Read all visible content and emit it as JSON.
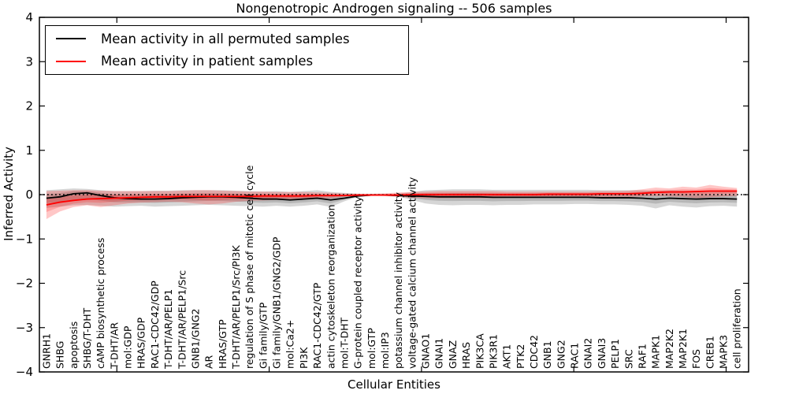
{
  "figure": {
    "title": "Nongenotropic Androgen signaling -- 506 samples",
    "xlabel": "Cellular Entities",
    "ylabel": "Inferred Activity"
  },
  "legend": {
    "position": "upper left",
    "items": [
      {
        "label": "Mean activity in all permuted samples",
        "color": "#000000"
      },
      {
        "label": "Mean activity in patient samples",
        "color": "#ff0000"
      }
    ]
  },
  "chart_data": {
    "type": "line",
    "title": "Nongenotropic Androgen signaling -- 506 samples",
    "xlabel": "Cellular Entities",
    "ylabel": "Inferred Activity",
    "ylim": [
      -4,
      4
    ],
    "yticks": [
      4,
      3,
      2,
      1,
      0,
      -1,
      -2,
      -3,
      -4
    ],
    "xlim": [
      -0.52,
      51.86
    ],
    "x_major_tick_positions": [
      5.2,
      16.45,
      27.7,
      38.95,
      50.2
    ],
    "grid": false,
    "background_color": "#ffffff",
    "axis_color": "#000000",
    "zero_line": {
      "y": 0,
      "style": "dotted",
      "color": "#000000"
    },
    "categories": [
      "GNRH1",
      "SHBG",
      "apoptosis",
      "SHBG/T-DHT",
      "cAMP biosynthetic process",
      "T-DHT/AR",
      "mol:GDP",
      "HRAS/GDP",
      "RAC1-CDC42/GDP",
      "T-DHT/AR/PELP1",
      "T-DHT/AR/PELP1/Src",
      "GNB1/GNG2",
      "AR",
      "HRAS/GTP",
      "T-DHT/AR/PELP1/Src/PI3K",
      "regulation of S phase of mitotic cell cycle",
      "Gi family/GTP",
      "Gi family/GNB1/GNG2/GDP",
      "mol:Ca2+",
      "PI3K",
      "RAC1-CDC42/GTP",
      "actin cytoskeleton reorganization",
      "mol:T-DHT",
      "G-protein coupled receptor activity",
      "mol:GTP",
      "mol:IP3",
      "potassium channel inhibitor activity",
      "voltage-gated calcium channel activity",
      "GNAO1",
      "GNAI1",
      "GNAZ",
      "HRAS",
      "PIK3CA",
      "PIK3R1",
      "AKT1",
      "PTK2",
      "CDC42",
      "GNB1",
      "GNG2",
      "RAC1",
      "GNAI2",
      "GNAI3",
      "PELP1",
      "SRC",
      "RAF1",
      "MAPK1",
      "MAP2K2",
      "MAP2K1",
      "FOS",
      "CREB1",
      "MAPK3",
      "cell proliferation"
    ],
    "series": [
      {
        "name": "Mean activity in all permuted samples",
        "color": "#000000",
        "band_color": "#000000",
        "band_alpha": 0.16,
        "values": [
          -0.08,
          -0.05,
          0.02,
          0.04,
          -0.02,
          -0.07,
          -0.09,
          -0.1,
          -0.1,
          -0.09,
          -0.07,
          -0.06,
          -0.05,
          -0.05,
          -0.06,
          -0.08,
          -0.1,
          -0.1,
          -0.12,
          -0.1,
          -0.08,
          -0.12,
          -0.08,
          -0.03,
          -0.01,
          -0.01,
          -0.02,
          -0.03,
          -0.04,
          -0.05,
          -0.05,
          -0.05,
          -0.05,
          -0.06,
          -0.06,
          -0.06,
          -0.06,
          -0.06,
          -0.06,
          -0.06,
          -0.06,
          -0.07,
          -0.07,
          -0.07,
          -0.08,
          -0.1,
          -0.08,
          -0.09,
          -0.1,
          -0.09,
          -0.09,
          -0.1
        ],
        "band_low": [
          -0.3,
          -0.27,
          -0.24,
          -0.23,
          -0.25,
          -0.27,
          -0.26,
          -0.25,
          -0.27,
          -0.26,
          -0.25,
          -0.24,
          -0.23,
          -0.24,
          -0.25,
          -0.26,
          -0.27,
          -0.25,
          -0.27,
          -0.25,
          -0.22,
          -0.28,
          -0.15,
          -0.05,
          -0.02,
          -0.02,
          -0.04,
          -0.12,
          -0.2,
          -0.23,
          -0.24,
          -0.23,
          -0.23,
          -0.24,
          -0.23,
          -0.23,
          -0.22,
          -0.22,
          -0.22,
          -0.21,
          -0.21,
          -0.22,
          -0.22,
          -0.23,
          -0.25,
          -0.31,
          -0.24,
          -0.27,
          -0.29,
          -0.26,
          -0.25,
          -0.27
        ],
        "band_high": [
          0.1,
          0.12,
          0.14,
          0.13,
          0.1,
          0.08,
          0.08,
          0.08,
          0.09,
          0.09,
          0.1,
          0.1,
          0.1,
          0.1,
          0.09,
          0.08,
          0.07,
          0.08,
          0.06,
          0.08,
          0.1,
          0.06,
          0.04,
          0.02,
          0.01,
          0.01,
          0.02,
          0.06,
          0.1,
          0.11,
          0.12,
          0.12,
          0.12,
          0.11,
          0.11,
          0.11,
          0.11,
          0.11,
          0.11,
          0.11,
          0.11,
          0.1,
          0.1,
          0.1,
          0.1,
          0.08,
          0.1,
          0.09,
          0.08,
          0.09,
          0.09,
          0.08
        ]
      },
      {
        "name": "Mean activity in patient samples",
        "color": "#ff0000",
        "band_color": "#ff0000",
        "band_alpha": 0.22,
        "values": [
          -0.23,
          -0.17,
          -0.13,
          -0.1,
          -0.09,
          -0.08,
          -0.07,
          -0.06,
          -0.05,
          -0.05,
          -0.04,
          -0.04,
          -0.04,
          -0.04,
          -0.04,
          -0.04,
          -0.03,
          -0.03,
          -0.03,
          -0.03,
          -0.02,
          -0.02,
          -0.02,
          -0.01,
          -0.01,
          -0.01,
          -0.01,
          0.0,
          0.0,
          0.0,
          0.0,
          0.0,
          0.0,
          0.0,
          0.0,
          0.0,
          0.0,
          0.01,
          0.01,
          0.01,
          0.01,
          0.02,
          0.02,
          0.02,
          0.03,
          0.05,
          0.06,
          0.06,
          0.07,
          0.08,
          0.08,
          0.08
        ],
        "band_low": [
          -0.55,
          -0.38,
          -0.28,
          -0.24,
          -0.28,
          -0.24,
          -0.2,
          -0.18,
          -0.17,
          -0.16,
          -0.17,
          -0.2,
          -0.22,
          -0.2,
          -0.16,
          -0.14,
          -0.13,
          -0.12,
          -0.12,
          -0.11,
          -0.09,
          -0.08,
          -0.05,
          -0.02,
          -0.02,
          -0.03,
          -0.05,
          -0.07,
          -0.08,
          -0.08,
          -0.08,
          -0.08,
          -0.08,
          -0.08,
          -0.07,
          -0.07,
          -0.07,
          -0.07,
          -0.06,
          -0.06,
          -0.06,
          -0.06,
          -0.05,
          -0.05,
          -0.04,
          -0.03,
          -0.04,
          -0.05,
          -0.08,
          -0.06,
          -0.04,
          -0.03
        ],
        "band_high": [
          0.08,
          0.09,
          0.1,
          0.1,
          0.09,
          0.08,
          0.08,
          0.08,
          0.08,
          0.08,
          0.09,
          0.1,
          0.1,
          0.09,
          0.08,
          0.07,
          0.07,
          0.06,
          0.06,
          0.06,
          0.05,
          0.04,
          0.03,
          0.02,
          0.02,
          0.03,
          0.05,
          0.06,
          0.07,
          0.08,
          0.08,
          0.08,
          0.08,
          0.08,
          0.07,
          0.07,
          0.07,
          0.07,
          0.07,
          0.07,
          0.07,
          0.08,
          0.08,
          0.09,
          0.12,
          0.16,
          0.14,
          0.18,
          0.16,
          0.22,
          0.18,
          0.15
        ]
      }
    ]
  }
}
